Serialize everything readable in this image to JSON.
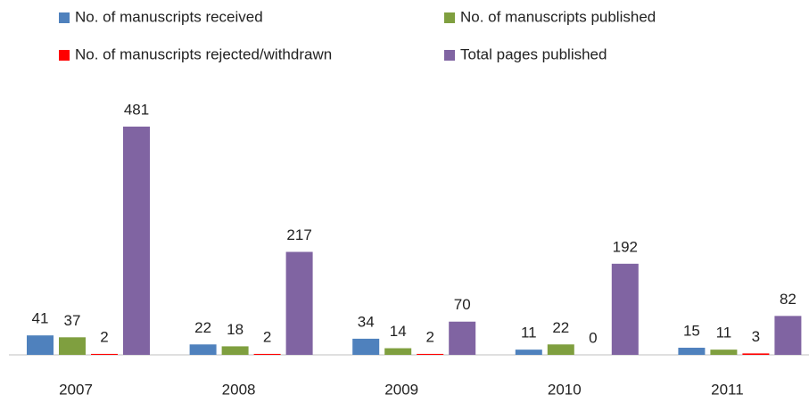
{
  "chart_data": {
    "type": "bar",
    "categories": [
      "2007",
      "2008",
      "2009",
      "2010",
      "2011"
    ],
    "series": [
      {
        "name": "No. of manuscripts received",
        "color": "#4f81bd",
        "values": [
          41,
          22,
          34,
          11,
          15
        ]
      },
      {
        "name": "No. of manuscripts published",
        "color": "#7f9f3f",
        "values": [
          37,
          18,
          14,
          22,
          11
        ]
      },
      {
        "name": "No. of manuscripts rejected/withdrawn",
        "color": "#ff0000",
        "values": [
          2,
          2,
          2,
          0,
          3
        ]
      },
      {
        "name": "Total pages published",
        "color": "#8064a2",
        "values": [
          481,
          217,
          70,
          192,
          82
        ]
      }
    ]
  }
}
